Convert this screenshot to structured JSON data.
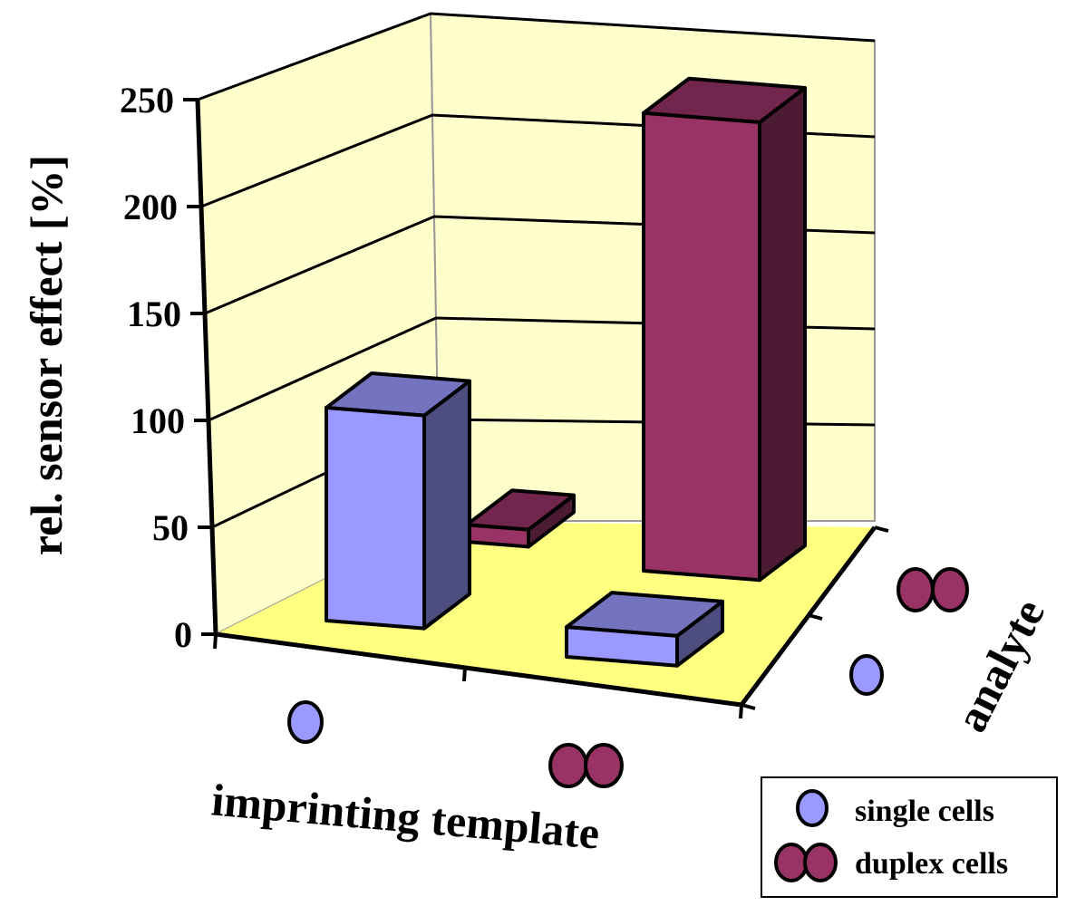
{
  "chart_data": {
    "type": "bar",
    "subtype": "3d-column",
    "title": "",
    "ylabel": "rel. sensor effect [%]",
    "xlabel": "imprinting template",
    "zlabel": "analyte",
    "ylim": [
      0,
      250
    ],
    "yticks": [
      0,
      50,
      100,
      150,
      200,
      250
    ],
    "categories": [
      "single cells",
      "duplex cells"
    ],
    "series": [
      {
        "name": "single cells",
        "color": "#9999ff",
        "values": [
          100,
          14
        ]
      },
      {
        "name": "duplex cells",
        "color": "#993366",
        "values": [
          8,
          215
        ]
      }
    ],
    "legend": {
      "position": "bottom-right",
      "items": [
        "single cells",
        "duplex cells"
      ]
    }
  }
}
